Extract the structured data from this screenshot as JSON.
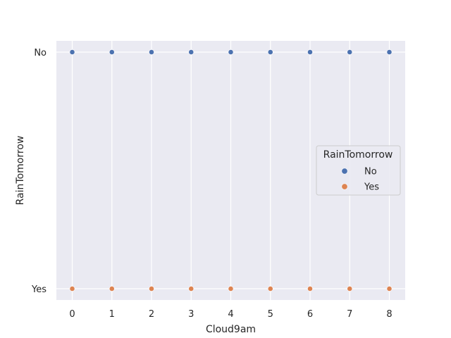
{
  "chart_data": {
    "type": "scatter",
    "title": "",
    "xlabel": "Cloud9am",
    "ylabel": "RainTomorrow",
    "x_ticks": [
      "0",
      "1",
      "2",
      "3",
      "4",
      "5",
      "6",
      "7",
      "8"
    ],
    "y_categories": [
      "No",
      "Yes"
    ],
    "xlim": [
      -0.4,
      8.4
    ],
    "grid": true,
    "legend_placement": "center-right",
    "legend": {
      "title": "RainTomorrow",
      "entries": [
        {
          "label": "No",
          "color": "#4c72b0"
        },
        {
          "label": "Yes",
          "color": "#dd8452"
        }
      ]
    },
    "series": [
      {
        "name": "No",
        "color": "#4c72b0",
        "points": [
          [
            0,
            "No"
          ],
          [
            1,
            "No"
          ],
          [
            2,
            "No"
          ],
          [
            3,
            "No"
          ],
          [
            4,
            "No"
          ],
          [
            5,
            "No"
          ],
          [
            6,
            "No"
          ],
          [
            7,
            "No"
          ],
          [
            8,
            "No"
          ]
        ]
      },
      {
        "name": "Yes",
        "color": "#dd8452",
        "points": [
          [
            0,
            "Yes"
          ],
          [
            1,
            "Yes"
          ],
          [
            2,
            "Yes"
          ],
          [
            3,
            "Yes"
          ],
          [
            4,
            "Yes"
          ],
          [
            5,
            "Yes"
          ],
          [
            6,
            "Yes"
          ],
          [
            7,
            "Yes"
          ],
          [
            8,
            "Yes"
          ]
        ]
      }
    ],
    "background_color": "#eaeaf2",
    "grid_color": "#ffffff"
  }
}
